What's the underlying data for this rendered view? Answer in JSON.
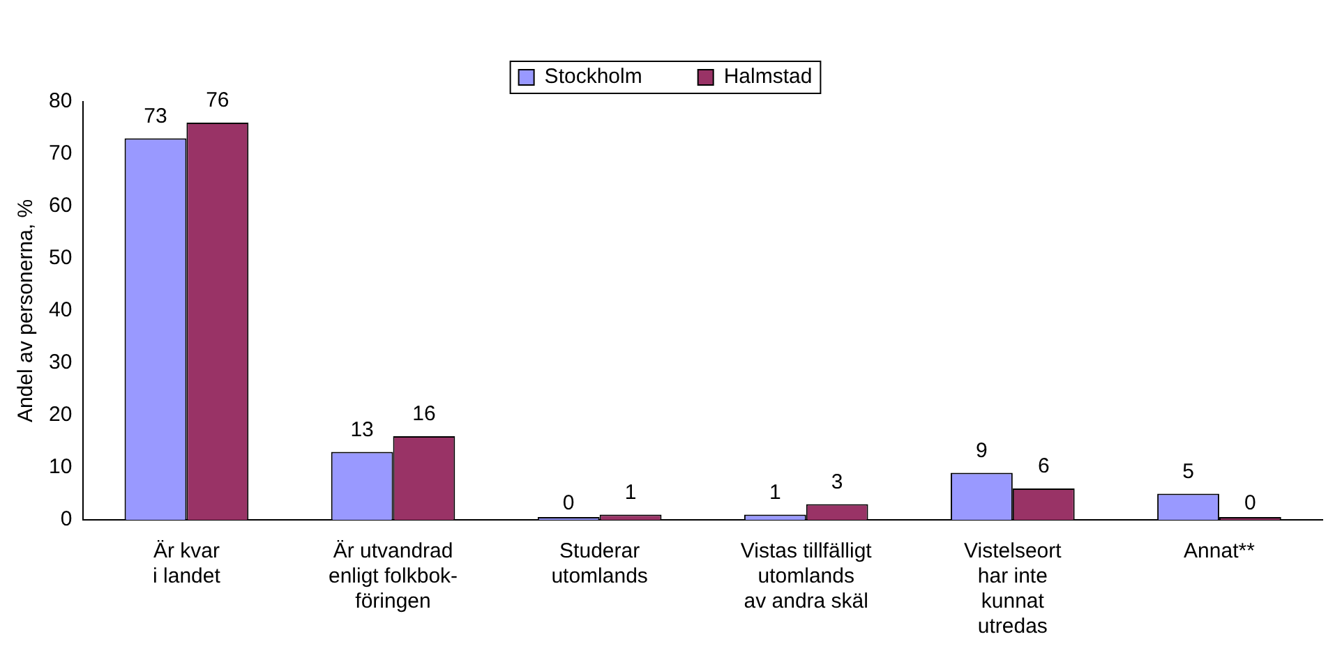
{
  "chart_data": {
    "type": "bar",
    "ylabel": "Andel av personerna, %",
    "categories": [
      "Är kvar\ni landet",
      "Är utvandrad\nenligt folkbok-\nföringen",
      "Studerar\nutomlands",
      "Vistas tillfälligt\nutomlands\nav andra skäl",
      "Vistelseort\nhar inte\nkunnat\nutredas",
      "Annat**"
    ],
    "series": [
      {
        "name": "Stockholm",
        "color": "#9999ff",
        "values": [
          73,
          13,
          0,
          1,
          9,
          5
        ]
      },
      {
        "name": "Halmstad",
        "color": "#993366",
        "values": [
          76,
          16,
          1,
          3,
          6,
          0
        ]
      }
    ],
    "ylim": [
      0,
      80
    ],
    "yticks": [
      0,
      10,
      20,
      30,
      40,
      50,
      60,
      70,
      80
    ],
    "grid": false,
    "legend": "top",
    "data_labels": true
  }
}
